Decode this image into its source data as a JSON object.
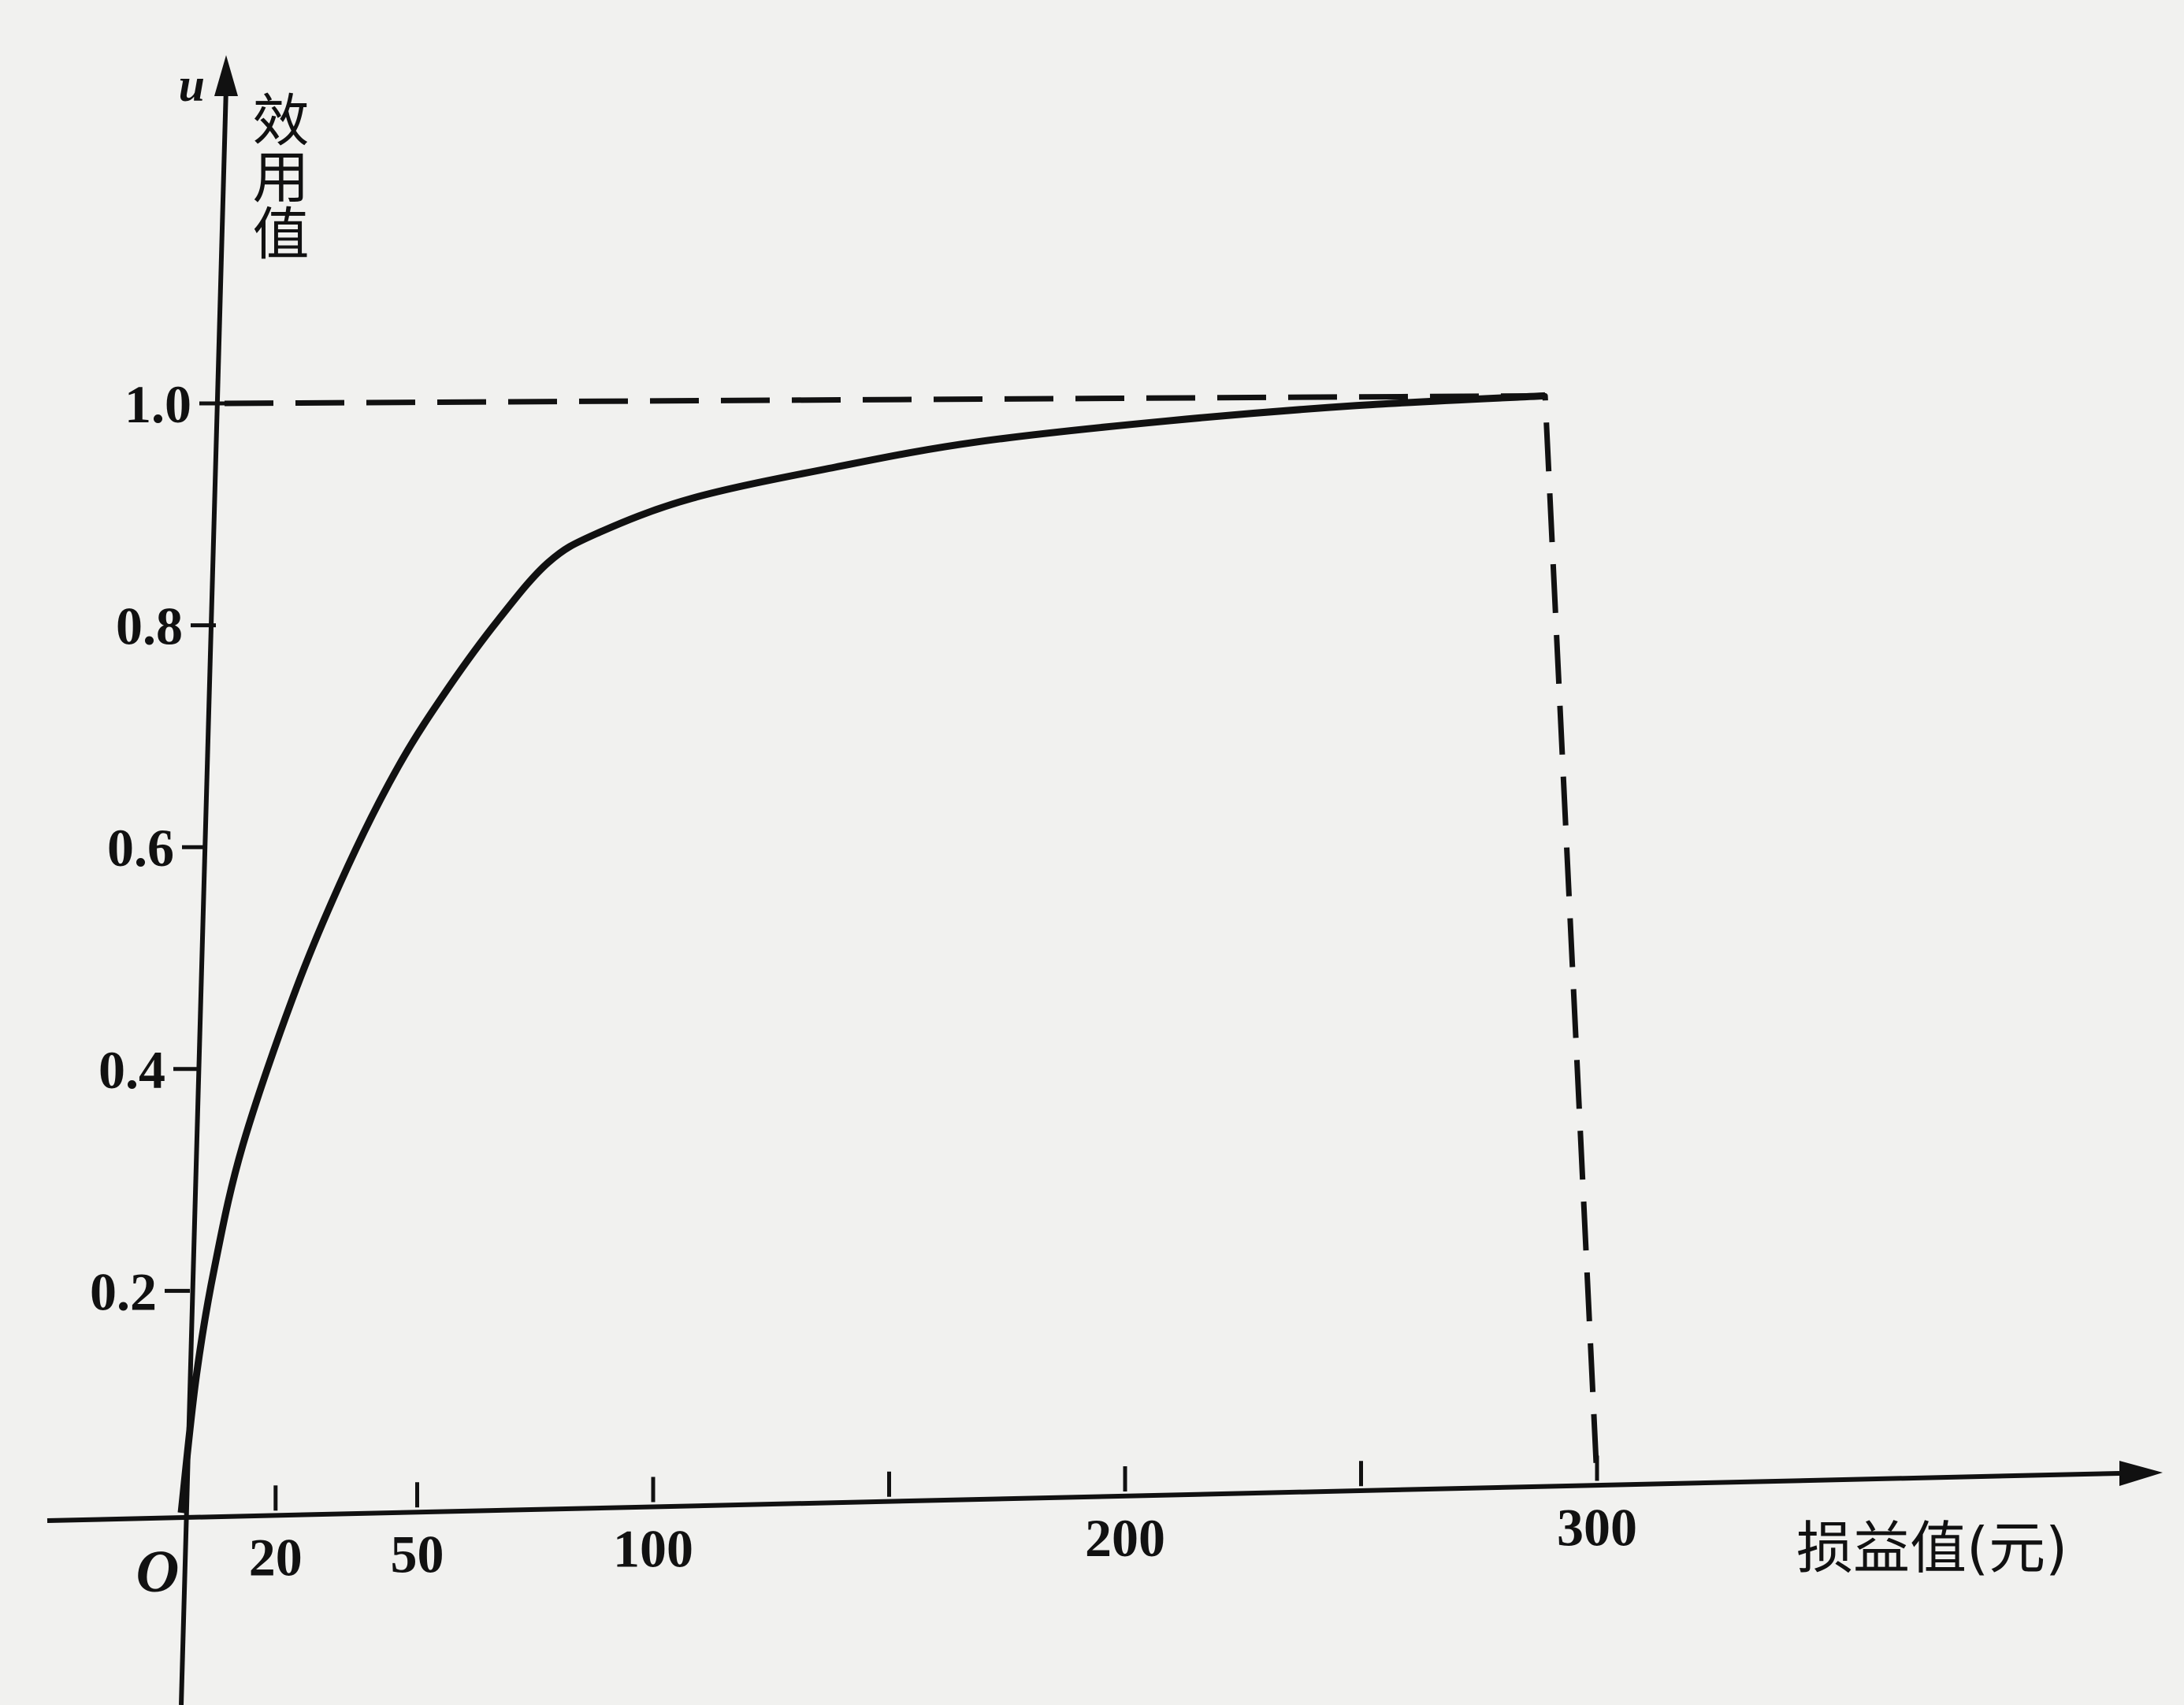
{
  "chart_data": {
    "type": "line",
    "title": "",
    "origin_label": "O",
    "y_axis_var": "u",
    "ylabel": "效用值",
    "xlabel": "损益值(元)",
    "xlim": [
      0,
      300
    ],
    "ylim": [
      0,
      1.0
    ],
    "x_ticks": [
      20,
      50,
      100,
      200,
      300
    ],
    "x_minor_ticks": [
      150,
      250
    ],
    "y_ticks": [
      0.2,
      0.4,
      0.6,
      0.8,
      1.0
    ],
    "x_tick_labels": [
      "20",
      "50",
      "100",
      "200",
      "300"
    ],
    "y_tick_labels": [
      "0.2",
      "0.4",
      "0.6",
      "0.8",
      "1.0"
    ],
    "grid": false,
    "legend": "none",
    "series": [
      {
        "style": "solid",
        "color": "#111111",
        "points": [
          [
            0,
            0
          ],
          [
            2,
            0.12
          ],
          [
            5,
            0.22
          ],
          [
            10,
            0.33
          ],
          [
            20,
            0.47
          ],
          [
            30,
            0.58
          ],
          [
            40,
            0.67
          ],
          [
            50,
            0.74
          ],
          [
            60,
            0.8
          ],
          [
            70,
            0.85
          ],
          [
            80,
            0.875
          ],
          [
            100,
            0.905
          ],
          [
            130,
            0.93
          ],
          [
            160,
            0.95
          ],
          [
            200,
            0.965
          ],
          [
            240,
            0.975
          ],
          [
            280,
            0.98
          ]
        ]
      },
      {
        "style": "dashed",
        "color": "#111111",
        "points": [
          [
            0,
            1.0
          ],
          [
            280,
            0.98
          ],
          [
            300,
            0
          ]
        ]
      }
    ]
  }
}
